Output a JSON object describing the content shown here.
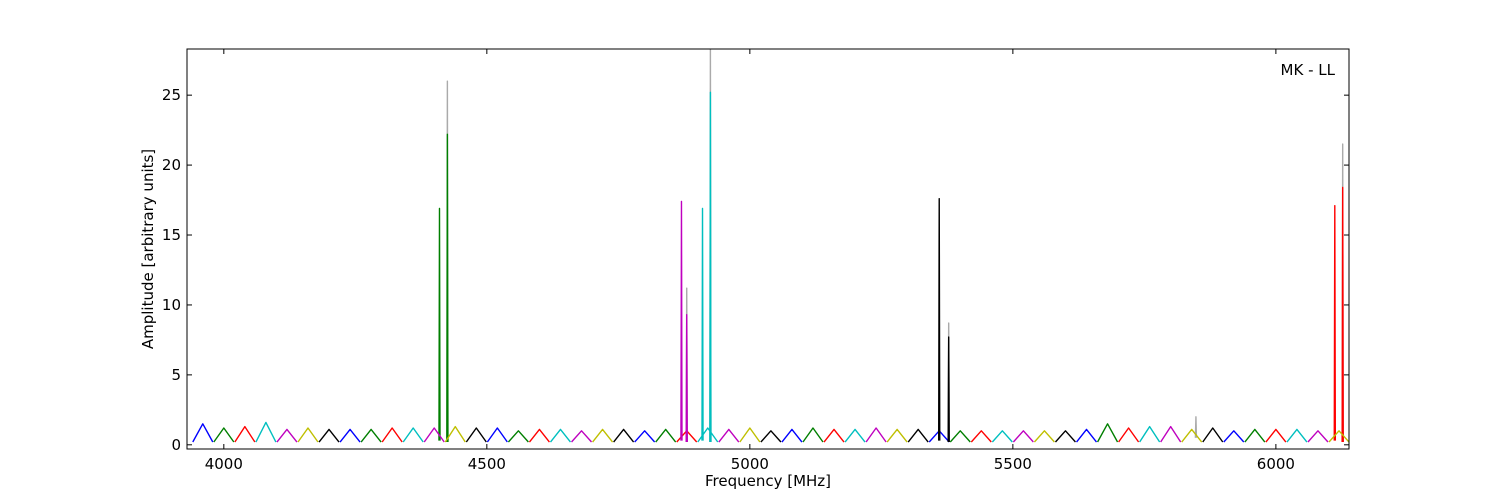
{
  "chart_data": {
    "type": "line",
    "annotation": "MK - LL",
    "xlabel": "Frequency [MHz]",
    "ylabel": "Amplitude [arbitrary units]",
    "xlim": [
      3930,
      6139
    ],
    "ylim": [
      -0.3,
      28.3
    ],
    "xticks": [
      4000,
      4500,
      5000,
      5500,
      6000
    ],
    "yticks": [
      0,
      5,
      10,
      15,
      20,
      25
    ],
    "series": [
      {
        "color": "#aaaaaa",
        "x": [
          4424,
          4425,
          4426,
          null,
          4879,
          4880,
          4881,
          null,
          4924,
          4925,
          4926,
          null,
          5377,
          5378,
          5379,
          null,
          5847,
          5848,
          5849,
          null,
          6126,
          6127,
          6128
        ],
        "values": [
          0.2,
          26.0,
          0.2,
          null,
          0.2,
          11.2,
          0.2,
          null,
          0.2,
          28.3,
          0.2,
          null,
          0.2,
          8.7,
          0.2,
          null,
          0.5,
          2.0,
          0.5,
          null,
          0.2,
          21.5,
          0.2
        ]
      },
      {
        "color": "#0000ff",
        "x": [
          3941,
          3960,
          3979,
          null,
          4221,
          4240,
          4259,
          null,
          4501,
          4520,
          4539,
          null,
          4781,
          4800,
          4819,
          null,
          5061,
          5080,
          5099,
          null,
          5341,
          5360,
          5379,
          null,
          5621,
          5640,
          5659,
          null,
          5901,
          5920,
          5939
        ],
        "values": [
          0.2,
          1.5,
          0.2,
          null,
          0.2,
          1.1,
          0.2,
          null,
          0.2,
          1.2,
          0.2,
          null,
          0.2,
          1.0,
          0.2,
          null,
          0.2,
          1.1,
          0.2,
          null,
          0.2,
          1.0,
          0.2,
          null,
          0.2,
          1.1,
          0.2,
          null,
          0.2,
          1.0,
          0.2
        ]
      },
      {
        "color": "#007f00",
        "x": [
          3981,
          4000,
          4019,
          null,
          4261,
          4280,
          4299,
          null,
          4541,
          4560,
          4579,
          null,
          4821,
          4840,
          4859,
          null,
          5101,
          5120,
          5139,
          null,
          5381,
          5400,
          5419,
          null,
          5661,
          5680,
          5699,
          null,
          5941,
          5960,
          5979,
          null,
          4409,
          4410,
          4411,
          null,
          4424,
          4425,
          4426
        ],
        "values": [
          0.2,
          1.2,
          0.2,
          null,
          0.2,
          1.1,
          0.2,
          null,
          0.2,
          1.0,
          0.2,
          null,
          0.2,
          1.1,
          0.2,
          null,
          0.2,
          1.2,
          0.2,
          null,
          0.2,
          1.0,
          0.2,
          null,
          0.2,
          1.5,
          0.2,
          null,
          0.2,
          1.1,
          0.2,
          null,
          0.3,
          16.9,
          0.3,
          null,
          0.2,
          22.2,
          0.2
        ]
      },
      {
        "color": "#ff0000",
        "x": [
          4021,
          4040,
          4059,
          null,
          4301,
          4320,
          4339,
          null,
          4581,
          4600,
          4619,
          null,
          4861,
          4880,
          4899,
          null,
          5141,
          5160,
          5179,
          null,
          5421,
          5440,
          5459,
          null,
          5701,
          5720,
          5739,
          null,
          5981,
          6000,
          6019,
          null,
          6111,
          6112,
          6113,
          null,
          6126,
          6127,
          6128
        ],
        "values": [
          0.2,
          1.3,
          0.2,
          null,
          0.2,
          1.2,
          0.2,
          null,
          0.2,
          1.1,
          0.2,
          null,
          0.2,
          1.0,
          0.2,
          null,
          0.2,
          1.1,
          0.2,
          null,
          0.2,
          1.0,
          0.2,
          null,
          0.2,
          1.2,
          0.2,
          null,
          0.2,
          1.1,
          0.2,
          null,
          0.3,
          17.1,
          0.3,
          null,
          0.2,
          18.4,
          0.2
        ]
      },
      {
        "color": "#00bfbf",
        "x": [
          4061,
          4080,
          4099,
          null,
          4341,
          4360,
          4379,
          null,
          4621,
          4640,
          4659,
          null,
          4901,
          4920,
          4939,
          null,
          5181,
          5200,
          5219,
          null,
          5461,
          5480,
          5499,
          null,
          5741,
          5760,
          5779,
          null,
          6021,
          6040,
          6059,
          null,
          4909,
          4910,
          4911,
          null,
          4924,
          4925,
          4926
        ],
        "values": [
          0.2,
          1.6,
          0.2,
          null,
          0.2,
          1.2,
          0.2,
          null,
          0.2,
          1.1,
          0.2,
          null,
          0.2,
          1.2,
          0.2,
          null,
          0.2,
          1.1,
          0.2,
          null,
          0.2,
          1.0,
          0.2,
          null,
          0.2,
          1.3,
          0.2,
          null,
          0.2,
          1.1,
          0.2,
          null,
          0.3,
          16.9,
          0.3,
          null,
          0.2,
          25.2,
          0.2
        ]
      },
      {
        "color": "#bf00bf",
        "x": [
          4101,
          4120,
          4139,
          null,
          4381,
          4400,
          4419,
          null,
          4661,
          4680,
          4699,
          null,
          4941,
          4960,
          4979,
          null,
          5221,
          5240,
          5259,
          null,
          5501,
          5520,
          5539,
          null,
          5781,
          5800,
          5819,
          null,
          6061,
          6080,
          6099,
          null,
          4869,
          4870,
          4871,
          null,
          4879,
          4880,
          4881
        ],
        "values": [
          0.2,
          1.1,
          0.2,
          null,
          0.2,
          1.2,
          0.2,
          null,
          0.2,
          1.0,
          0.2,
          null,
          0.2,
          1.1,
          0.2,
          null,
          0.2,
          1.2,
          0.2,
          null,
          0.2,
          1.0,
          0.2,
          null,
          0.2,
          1.3,
          0.2,
          null,
          0.2,
          1.0,
          0.2,
          null,
          0.3,
          17.4,
          0.3,
          null,
          0.2,
          9.3,
          0.2
        ]
      },
      {
        "color": "#bfbf00",
        "x": [
          4141,
          4160,
          4179,
          null,
          4421,
          4440,
          4459,
          null,
          4701,
          4720,
          4739,
          null,
          4981,
          5000,
          5019,
          null,
          5261,
          5280,
          5299,
          null,
          5541,
          5560,
          5579,
          null,
          5821,
          5840,
          5859,
          null,
          6101,
          6120,
          6139
        ],
        "values": [
          0.2,
          1.2,
          0.2,
          null,
          0.2,
          1.3,
          0.2,
          null,
          0.2,
          1.1,
          0.2,
          null,
          0.2,
          1.2,
          0.2,
          null,
          0.2,
          1.1,
          0.2,
          null,
          0.2,
          1.0,
          0.2,
          null,
          0.2,
          1.1,
          0.2,
          null,
          0.2,
          1.0,
          0.2
        ]
      },
      {
        "color": "#000000",
        "x": [
          4181,
          4200,
          4219,
          null,
          4461,
          4480,
          4499,
          null,
          4741,
          4760,
          4779,
          null,
          5021,
          5040,
          5059,
          null,
          5301,
          5320,
          5339,
          null,
          5581,
          5600,
          5619,
          null,
          5861,
          5880,
          5899,
          null,
          5359,
          5360,
          5361,
          null,
          5377,
          5378,
          5379
        ],
        "values": [
          0.2,
          1.1,
          0.2,
          null,
          0.2,
          1.2,
          0.2,
          null,
          0.2,
          1.1,
          0.2,
          null,
          0.2,
          1.0,
          0.2,
          null,
          0.2,
          1.1,
          0.2,
          null,
          0.2,
          1.0,
          0.2,
          null,
          0.2,
          1.2,
          0.2,
          null,
          0.3,
          17.6,
          0.3,
          null,
          0.2,
          7.7,
          0.2
        ]
      }
    ]
  }
}
